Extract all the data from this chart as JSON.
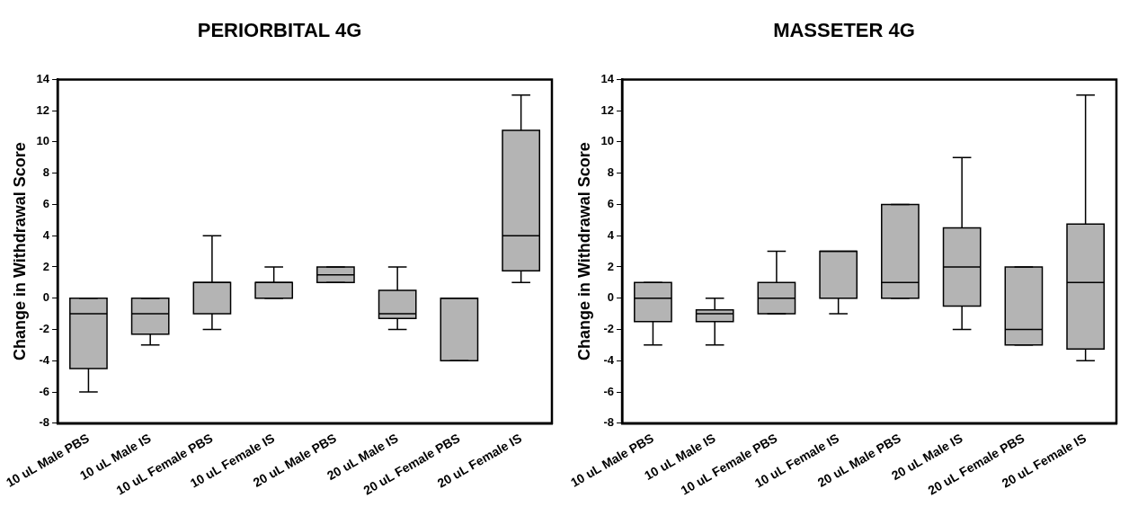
{
  "chart_data": [
    {
      "type": "box",
      "title": "PERIORBITAL 4G",
      "ylabel": "Change in Withdrawal Score",
      "categories": [
        "10 uL Male PBS",
        "10 uL Male IS",
        "10 uL Female PBS",
        "10 uL Female IS",
        "20 uL Male PBS",
        "20 uL Male IS",
        "20 uL Female PBS",
        "20 uL Female IS"
      ],
      "color": "#b4b4b4",
      "ylim": [
        -8,
        14
      ],
      "yticks": [
        -8,
        -6,
        -4,
        -2,
        0,
        2,
        4,
        6,
        8,
        10,
        12,
        14
      ],
      "grid": false,
      "legend": false,
      "boxes": [
        {
          "low": -6,
          "q1": -4.5,
          "median": -1,
          "q3": 0,
          "high": 0
        },
        {
          "low": -3,
          "q1": -2.3,
          "median": -1,
          "q3": 0,
          "high": 0
        },
        {
          "low": -2,
          "q1": -1,
          "median": 1,
          "q3": 1,
          "high": 4
        },
        {
          "low": 0,
          "q1": 0,
          "median": 1,
          "q3": 1,
          "high": 2
        },
        {
          "low": 1,
          "q1": 1,
          "median": 1.5,
          "q3": 2,
          "high": 2
        },
        {
          "low": -2,
          "q1": -1.3,
          "median": -1,
          "q3": 0.5,
          "high": 2
        },
        {
          "low": -4,
          "q1": -4,
          "median": 0,
          "q3": 0,
          "high": 0
        },
        {
          "low": 1,
          "q1": 1.75,
          "median": 4,
          "q3": 10.75,
          "high": 13
        }
      ]
    },
    {
      "type": "box",
      "title": "MASSETER 4G",
      "ylabel": "Change in Withdrawal Score",
      "categories": [
        "10 uL Male PBS",
        "10 uL Male IS",
        "10 uL Female PBS",
        "10 uL Female IS",
        "20 uL Male PBS",
        "20 uL Male IS",
        "20 uL Female PBS",
        "20 uL Female IS"
      ],
      "color": "#b4b4b4",
      "ylim": [
        -8,
        14
      ],
      "yticks": [
        -8,
        -6,
        -4,
        -2,
        0,
        2,
        4,
        6,
        8,
        10,
        12,
        14
      ],
      "grid": false,
      "legend": false,
      "boxes": [
        {
          "low": -3,
          "q1": -1.5,
          "median": 0,
          "q3": 1,
          "high": 1
        },
        {
          "low": -3,
          "q1": -1.5,
          "median": -1,
          "q3": -0.75,
          "high": 0
        },
        {
          "low": -1,
          "q1": -1,
          "median": 0,
          "q3": 1,
          "high": 3
        },
        {
          "low": -1,
          "q1": 0,
          "median": 3,
          "q3": 3,
          "high": 3
        },
        {
          "low": 0,
          "q1": 0,
          "median": 1,
          "q3": 6,
          "high": 6
        },
        {
          "low": -2,
          "q1": -0.5,
          "median": 2,
          "q3": 4.5,
          "high": 9
        },
        {
          "low": -3,
          "q1": -3,
          "median": -2,
          "q3": 2,
          "high": 2
        },
        {
          "low": -4,
          "q1": -3.25,
          "median": 1,
          "q3": 4.75,
          "high": 13
        }
      ]
    }
  ]
}
